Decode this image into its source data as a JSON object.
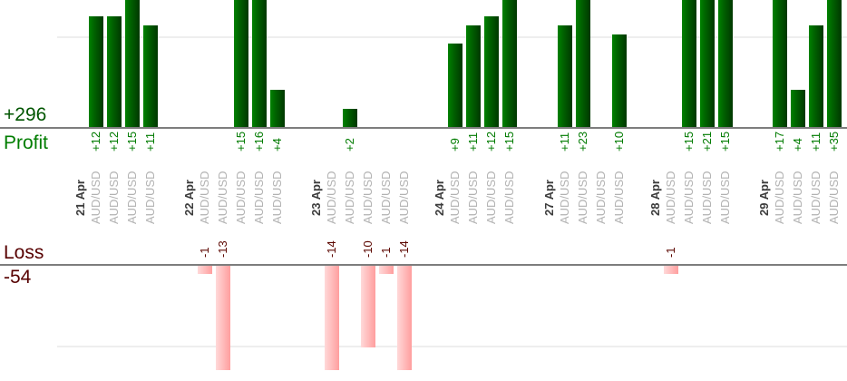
{
  "chart_data": {
    "type": "bar",
    "title": "",
    "totals": {
      "profit_label": "+296",
      "loss_label": "-54"
    },
    "axis_labels": {
      "profit": "Profit",
      "loss": "Loss"
    },
    "days": [
      {
        "date": "21 Apr",
        "trades": [
          {
            "pair": "AUD/USD",
            "value": 12
          },
          {
            "pair": "AUD/USD",
            "value": 12
          },
          {
            "pair": "AUD/USD",
            "value": 15
          },
          {
            "pair": "AUD/USD",
            "value": 11
          }
        ]
      },
      {
        "date": "22 Apr",
        "trades": [
          {
            "pair": "AUD/USD",
            "value": -1
          },
          {
            "pair": "AUD/USD",
            "value": -13
          },
          {
            "pair": "AUD/USD",
            "value": 15
          },
          {
            "pair": "AUD/USD",
            "value": 16
          },
          {
            "pair": "AUD/USD",
            "value": 4
          }
        ]
      },
      {
        "date": "23 Apr",
        "trades": [
          {
            "pair": "AUD/USD",
            "value": -14
          },
          {
            "pair": "AUD/USD",
            "value": 2
          },
          {
            "pair": "AUD/USD",
            "value": -10
          },
          {
            "pair": "AUD/USD",
            "value": -1
          },
          {
            "pair": "AUD/USD",
            "value": -14
          }
        ]
      },
      {
        "date": "24 Apr",
        "trades": [
          {
            "pair": "AUD/USD",
            "value": 9
          },
          {
            "pair": "AUD/USD",
            "value": 11
          },
          {
            "pair": "AUD/USD",
            "value": 12
          },
          {
            "pair": "AUD/USD",
            "value": 15
          }
        ]
      },
      {
        "date": "27 Apr",
        "trades": [
          {
            "pair": "AUD/USD",
            "value": 11
          },
          {
            "pair": "AUD/USD",
            "value": 23
          },
          {
            "pair": "AUD/USD",
            "value": 0
          },
          {
            "pair": "AUD/USD",
            "value": 10
          }
        ]
      },
      {
        "date": "28 Apr",
        "trades": [
          {
            "pair": "AUD/USD",
            "value": -1
          },
          {
            "pair": "AUD/USD",
            "value": 15
          },
          {
            "pair": "AUD/USD",
            "value": 21
          },
          {
            "pair": "AUD/USD",
            "value": 15
          }
        ]
      },
      {
        "date": "29 Apr",
        "trades": [
          {
            "pair": "AUD/USD",
            "value": 17
          },
          {
            "pair": "AUD/USD",
            "value": 4
          },
          {
            "pair": "AUD/USD",
            "value": 11
          },
          {
            "pair": "AUD/USD",
            "value": 35
          }
        ]
      }
    ],
    "colors": {
      "profit_bar_light": "#008200",
      "profit_bar_dark": "#003800",
      "loss_bar_light": "#ffd9d9",
      "loss_bar_dark": "#ff9e9e",
      "profit_value_text": "#007b00",
      "loss_value_text": "#5c0700",
      "total_profit_text": "#005500",
      "total_loss_text": "#570000",
      "profit_axis_text": "#007d00",
      "loss_axis_text": "#570000",
      "date_text": "#3c3c3c",
      "pair_text": "#b2b2b2",
      "axis_line": "#7d7d7d",
      "gridline": "#eeeeee"
    },
    "layout": {
      "legend": "none",
      "grid": "horizontal-faint",
      "bar_label_rotation": -90
    }
  }
}
